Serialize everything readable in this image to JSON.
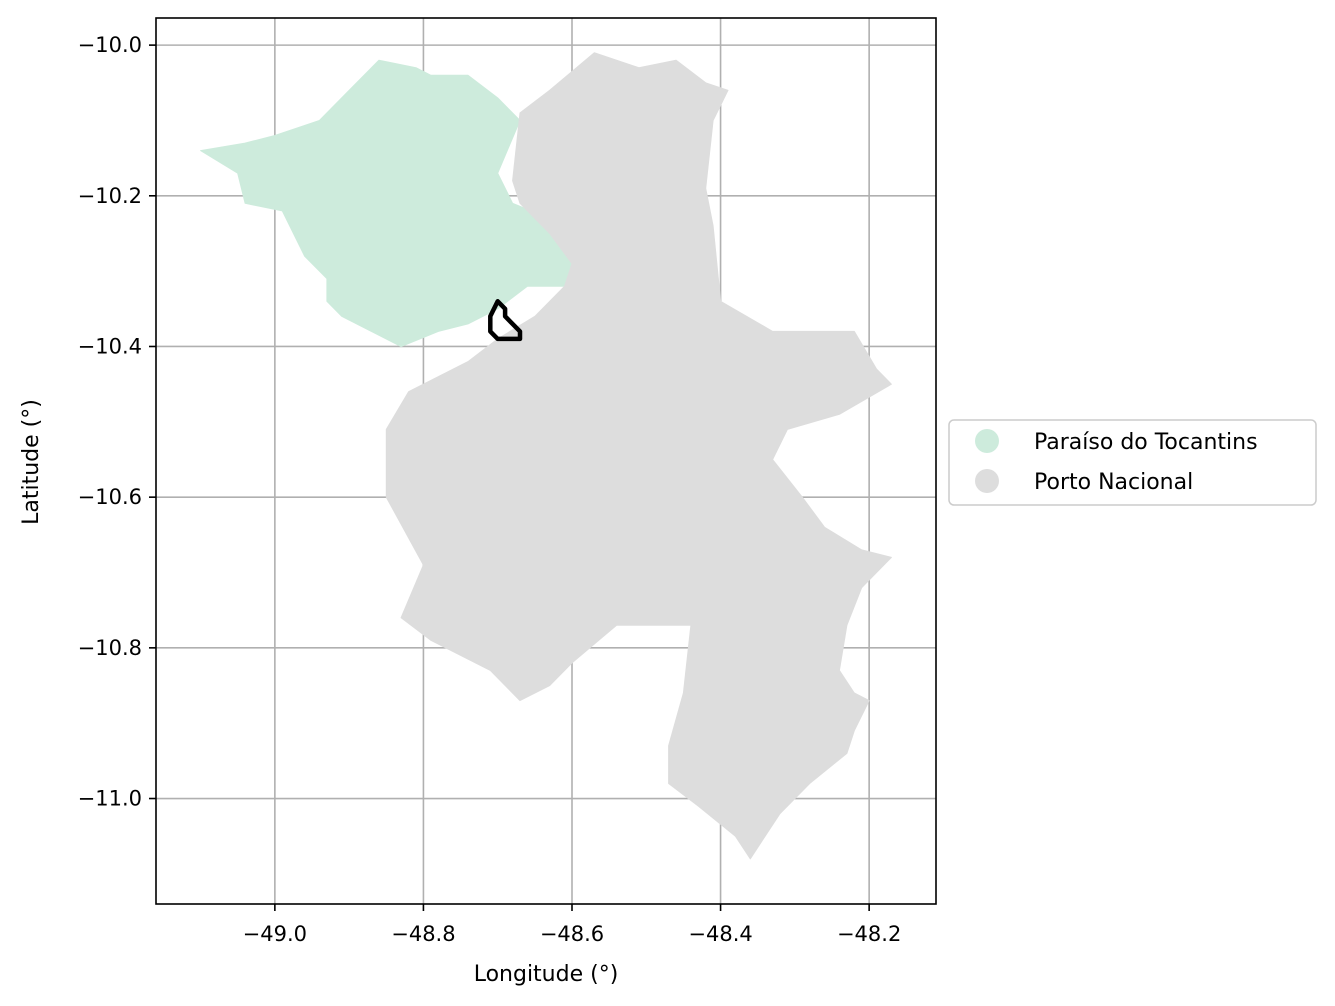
{
  "chart_data": {
    "type": "map",
    "xlabel": "Longitude (°)",
    "ylabel": "Latitude (°)",
    "xlim": [
      -49.16,
      -48.11
    ],
    "ylim": [
      -11.14,
      -9.964
    ],
    "x_ticks": [
      -49.0,
      -48.8,
      -48.6,
      -48.4,
      -48.2
    ],
    "y_ticks": [
      -10.0,
      -10.2,
      -10.4,
      -10.6,
      -10.8,
      -11.0
    ],
    "x_tick_labels": [
      "−49.0",
      "−48.8",
      "−48.6",
      "−48.4",
      "−48.2"
    ],
    "y_tick_labels": [
      "−10.0",
      "−10.2",
      "−10.4",
      "−10.6",
      "−10.8",
      "−11.0"
    ],
    "grid": true,
    "legend_position": "center-left outside right",
    "regions": [
      {
        "name": "Paraíso do Tocantins",
        "color": "#cdebdc",
        "coords": [
          [
            -49.1,
            -10.14
          ],
          [
            -49.05,
            -10.17
          ],
          [
            -49.04,
            -10.21
          ],
          [
            -48.99,
            -10.22
          ],
          [
            -48.96,
            -10.28
          ],
          [
            -48.93,
            -10.31
          ],
          [
            -48.93,
            -10.34
          ],
          [
            -48.91,
            -10.36
          ],
          [
            -48.87,
            -10.38
          ],
          [
            -48.83,
            -10.4
          ],
          [
            -48.78,
            -10.38
          ],
          [
            -48.74,
            -10.37
          ],
          [
            -48.7,
            -10.35
          ],
          [
            -48.66,
            -10.32
          ],
          [
            -48.61,
            -10.32
          ],
          [
            -48.6,
            -10.3
          ],
          [
            -48.6,
            -10.28
          ],
          [
            -48.63,
            -10.23
          ],
          [
            -48.68,
            -10.21
          ],
          [
            -48.7,
            -10.17
          ],
          [
            -48.67,
            -10.1
          ],
          [
            -48.7,
            -10.07
          ],
          [
            -48.74,
            -10.04
          ],
          [
            -48.79,
            -10.04
          ],
          [
            -48.81,
            -10.03
          ],
          [
            -48.86,
            -10.02
          ],
          [
            -48.9,
            -10.06
          ],
          [
            -48.94,
            -10.1
          ],
          [
            -49.0,
            -10.12
          ],
          [
            -49.04,
            -10.13
          ]
        ]
      },
      {
        "name": "Porto Nacional",
        "color": "#dddddd",
        "coords": [
          [
            -48.67,
            -10.09
          ],
          [
            -48.63,
            -10.06
          ],
          [
            -48.57,
            -10.01
          ],
          [
            -48.51,
            -10.03
          ],
          [
            -48.46,
            -10.02
          ],
          [
            -48.42,
            -10.05
          ],
          [
            -48.39,
            -10.06
          ],
          [
            -48.41,
            -10.1
          ],
          [
            -48.42,
            -10.19
          ],
          [
            -48.41,
            -10.24
          ],
          [
            -48.4,
            -10.34
          ],
          [
            -48.33,
            -10.38
          ],
          [
            -48.26,
            -10.38
          ],
          [
            -48.22,
            -10.38
          ],
          [
            -48.19,
            -10.43
          ],
          [
            -48.17,
            -10.45
          ],
          [
            -48.24,
            -10.49
          ],
          [
            -48.31,
            -10.51
          ],
          [
            -48.33,
            -10.55
          ],
          [
            -48.29,
            -10.6
          ],
          [
            -48.26,
            -10.64
          ],
          [
            -48.21,
            -10.67
          ],
          [
            -48.17,
            -10.68
          ],
          [
            -48.21,
            -10.72
          ],
          [
            -48.23,
            -10.77
          ],
          [
            -48.24,
            -10.83
          ],
          [
            -48.22,
            -10.86
          ],
          [
            -48.2,
            -10.87
          ],
          [
            -48.22,
            -10.91
          ],
          [
            -48.23,
            -10.94
          ],
          [
            -48.28,
            -10.98
          ],
          [
            -48.32,
            -11.02
          ],
          [
            -48.36,
            -11.08
          ],
          [
            -48.38,
            -11.05
          ],
          [
            -48.43,
            -11.01
          ],
          [
            -48.47,
            -10.98
          ],
          [
            -48.47,
            -10.93
          ],
          [
            -48.45,
            -10.86
          ],
          [
            -48.44,
            -10.77
          ],
          [
            -48.54,
            -10.77
          ],
          [
            -48.6,
            -10.82
          ],
          [
            -48.63,
            -10.85
          ],
          [
            -48.67,
            -10.87
          ],
          [
            -48.71,
            -10.83
          ],
          [
            -48.79,
            -10.79
          ],
          [
            -48.83,
            -10.76
          ],
          [
            -48.8,
            -10.69
          ],
          [
            -48.85,
            -10.6
          ],
          [
            -48.85,
            -10.51
          ],
          [
            -48.82,
            -10.46
          ],
          [
            -48.74,
            -10.42
          ],
          [
            -48.7,
            -10.39
          ],
          [
            -48.65,
            -10.36
          ],
          [
            -48.61,
            -10.32
          ],
          [
            -48.6,
            -10.29
          ],
          [
            -48.63,
            -10.25
          ],
          [
            -48.67,
            -10.21
          ],
          [
            -48.68,
            -10.18
          ]
        ]
      }
    ],
    "highlight": {
      "color": "#000000",
      "coords": [
        [
          -48.7,
          -10.34
        ],
        [
          -48.71,
          -10.36
        ],
        [
          -48.71,
          -10.38
        ],
        [
          -48.7,
          -10.39
        ],
        [
          -48.68,
          -10.39
        ],
        [
          -48.67,
          -10.39
        ],
        [
          -48.67,
          -10.38
        ],
        [
          -48.68,
          -10.37
        ],
        [
          -48.69,
          -10.36
        ],
        [
          -48.69,
          -10.35
        ]
      ]
    },
    "legend": [
      {
        "label": "Paraíso do Tocantins",
        "color": "#cdebdc"
      },
      {
        "label": "Porto Nacional",
        "color": "#dddddd"
      }
    ]
  }
}
